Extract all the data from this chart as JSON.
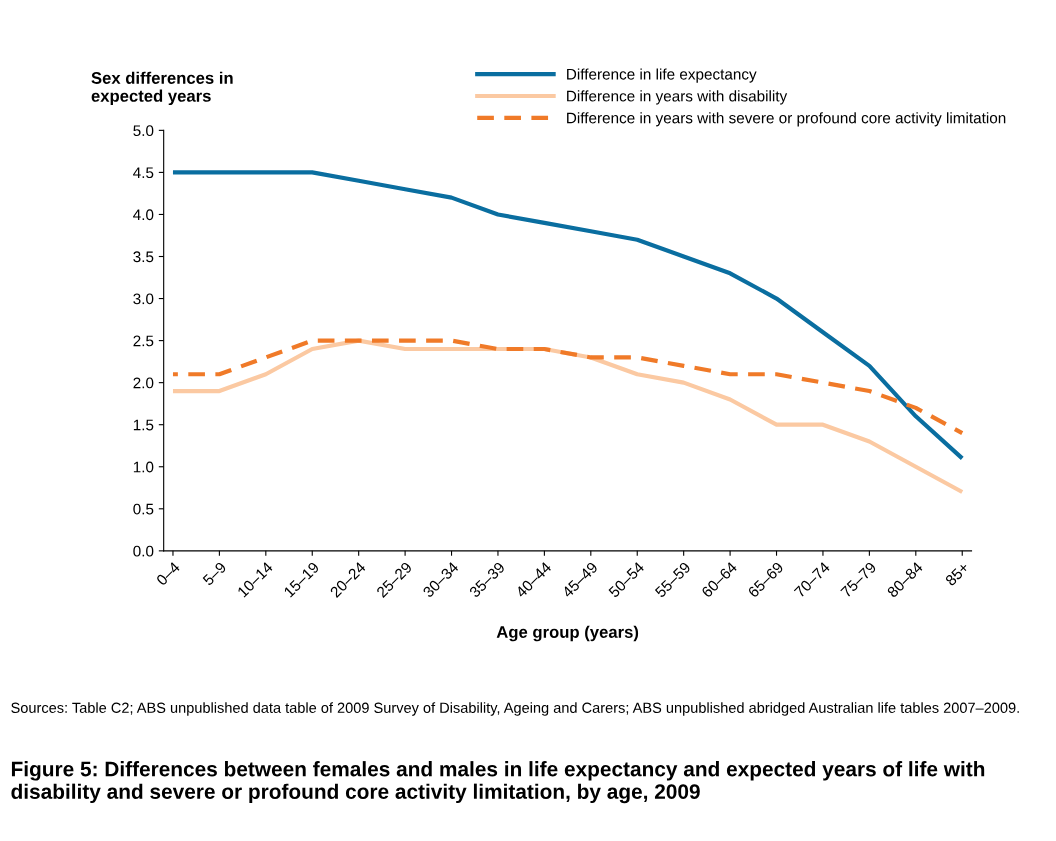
{
  "chart_data": {
    "type": "line",
    "title": "Figure 5: Differences between females and males in life expectancy and expected years of life with disability and severe or profound core activity limitation, by age, 2009",
    "ylabel": "Sex differences in\nexpected years",
    "xlabel": "Age group (years)",
    "annotations": [
      "Sources: Table C2; ABS unpublished data table of 2009 Survey of Disability, Ageing and Carers; ABS unpublished abridged Australian life tables 2007–2009."
    ],
    "categories": [
      "0–4",
      "5–9",
      "10–14",
      "15–19",
      "20–24",
      "25–29",
      "30–34",
      "35–39",
      "40–44",
      "45–49",
      "50–54",
      "55–59",
      "60–64",
      "65–69",
      "70–74",
      "75–79",
      "80–84",
      "85+"
    ],
    "series": [
      {
        "name": "Difference in life expectancy",
        "color": "#0a6ea0",
        "line_style": "solid",
        "values": [
          4.5,
          4.5,
          4.5,
          4.5,
          4.4,
          4.3,
          4.2,
          4.0,
          3.9,
          3.8,
          3.7,
          3.5,
          3.3,
          3.0,
          2.6,
          2.2,
          1.6,
          1.1
        ]
      },
      {
        "name": "Difference in years with disability",
        "color": "#fbc9a2",
        "line_style": "solid",
        "values": [
          1.9,
          1.9,
          2.1,
          2.4,
          2.5,
          2.4,
          2.4,
          2.4,
          2.4,
          2.3,
          2.1,
          2.0,
          1.8,
          1.5,
          1.5,
          1.3,
          1.0,
          0.7
        ]
      },
      {
        "name": "Difference in years with severe or profound core activity limitation",
        "color": "#f07a28",
        "line_style": "dashed",
        "values": [
          2.1,
          2.1,
          2.3,
          2.5,
          2.5,
          2.5,
          2.5,
          2.4,
          2.4,
          2.3,
          2.3,
          2.2,
          2.1,
          2.1,
          2.0,
          1.9,
          1.7,
          1.4
        ]
      }
    ],
    "ylim": [
      0,
      5
    ],
    "yticks": [
      {
        "value": 0,
        "label": "0.0"
      },
      {
        "value": 0.5,
        "label": "0.5"
      },
      {
        "value": 1,
        "label": "1.0"
      },
      {
        "value": 1.5,
        "label": "1.5"
      },
      {
        "value": 2,
        "label": "2.0"
      },
      {
        "value": 2.5,
        "label": "2.5"
      },
      {
        "value": 3,
        "label": "3.0"
      },
      {
        "value": 3.5,
        "label": "3.5"
      },
      {
        "value": 4,
        "label": "4.0"
      },
      {
        "value": 4.5,
        "label": "4.5"
      },
      {
        "value": 5,
        "label": "5.0"
      }
    ],
    "grid": false,
    "legend": "top right",
    "marker": "none"
  }
}
